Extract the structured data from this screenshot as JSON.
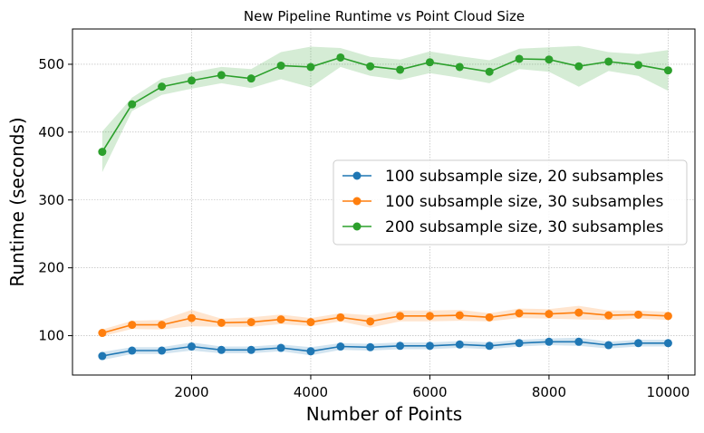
{
  "chart_data": {
    "type": "line",
    "title": "New Pipeline Runtime vs Point Cloud Size",
    "xlabel": "Number of Points",
    "ylabel": "Runtime (seconds)",
    "xlim": [
      0,
      10450
    ],
    "ylim": [
      42,
      552
    ],
    "xticks": [
      2000,
      4000,
      6000,
      8000,
      10000
    ],
    "yticks": [
      100,
      200,
      300,
      400,
      500
    ],
    "grid": true,
    "legend_position": "center-right",
    "x": [
      500,
      1000,
      1500,
      2000,
      2500,
      3000,
      3500,
      4000,
      4500,
      5000,
      5500,
      6000,
      6500,
      7000,
      7500,
      8000,
      8500,
      9000,
      9500,
      10000
    ],
    "series": [
      {
        "name": "100 subsample size, 20 subsamples",
        "color": "#1f77b4",
        "values": [
          70,
          78,
          78,
          84,
          79,
          79,
          82,
          77,
          84,
          83,
          85,
          85,
          87,
          85,
          89,
          91,
          91,
          86,
          89,
          89
        ],
        "band": [
          6,
          5,
          5,
          6,
          5,
          5,
          5,
          6,
          5,
          5,
          5,
          5,
          5,
          5,
          5,
          5,
          6,
          5,
          5,
          5
        ]
      },
      {
        "name": "100 subsample size, 30 subsamples",
        "color": "#ff7f0e",
        "values": [
          104,
          116,
          116,
          126,
          119,
          120,
          124,
          120,
          127,
          121,
          129,
          129,
          130,
          127,
          133,
          132,
          134,
          130,
          131,
          129
        ],
        "band": [
          5,
          6,
          7,
          12,
          6,
          7,
          7,
          6,
          6,
          9,
          8,
          8,
          8,
          6,
          7,
          7,
          10,
          7,
          6,
          6
        ]
      },
      {
        "name": "200 subsample size, 30 subsamples",
        "color": "#2ca02c",
        "values": [
          371,
          441,
          467,
          476,
          484,
          479,
          498,
          496,
          510,
          497,
          492,
          503,
          496,
          489,
          508,
          507,
          497,
          504,
          499,
          491
        ],
        "band": [
          30,
          10,
          12,
          12,
          12,
          14,
          20,
          30,
          14,
          14,
          15,
          16,
          16,
          17,
          15,
          18,
          30,
          14,
          16,
          30
        ]
      }
    ]
  }
}
